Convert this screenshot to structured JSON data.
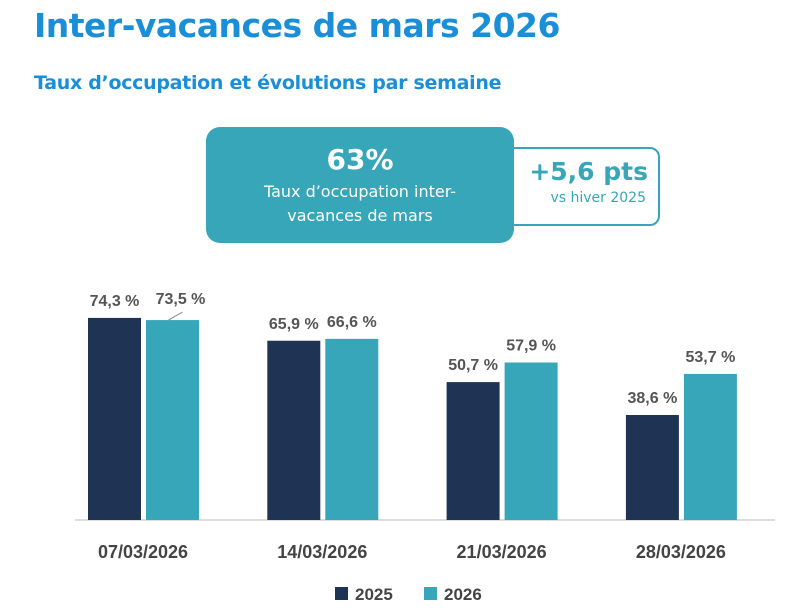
{
  "header": {
    "title": "Inter-vacances de mars 2026",
    "subtitle": "Taux d’occupation et évolutions par semaine"
  },
  "kpi": {
    "value": "63%",
    "label": "Taux d’occupation inter-vacances de mars",
    "delta": "+5,6 pts",
    "delta_label": "vs hiver 2025"
  },
  "chart_data": {
    "type": "bar",
    "categories": [
      "07/03/2026",
      "14/03/2026",
      "21/03/2026",
      "28/03/2026"
    ],
    "series": [
      {
        "name": "2025",
        "values": [
          74.3,
          65.9,
          50.7,
          38.6
        ],
        "labels": [
          "74,3 %",
          "65,9 %",
          "50,7 %",
          "38,6 %"
        ],
        "color": "#1f3355"
      },
      {
        "name": "2026",
        "values": [
          73.5,
          66.6,
          57.9,
          53.7
        ],
        "labels": [
          "73,5 %",
          "66,6 %",
          "57,9 %",
          "53,7 %"
        ],
        "color": "#36a6b8"
      }
    ],
    "ylim": [
      0,
      100
    ],
    "grid": false,
    "legend": "bottom"
  }
}
